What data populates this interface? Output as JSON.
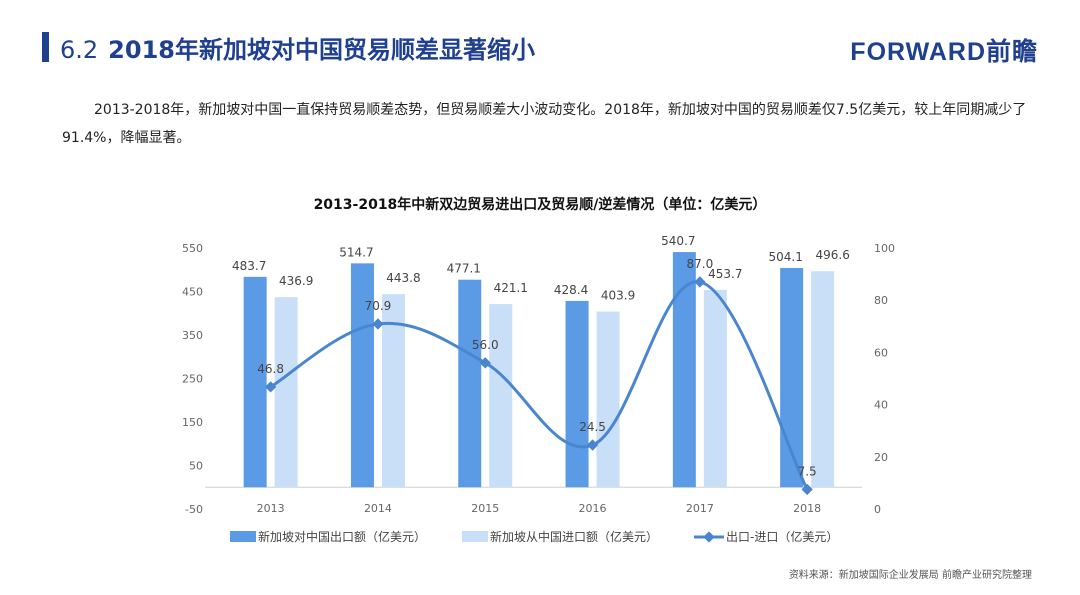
{
  "header": {
    "section_number": "6.2",
    "title": "2018年新加坡对中国贸易顺差显著缩小",
    "logo": "FORWARD前瞻"
  },
  "paragraph": "2013-2018年，新加坡对中国一直保持贸易顺差态势，但贸易顺差大小波动变化。2018年，新加坡对中国的贸易顺差仅7.5亿美元，较上年同期减少了91.4%，降幅显著。",
  "source": "资料来源：新加坡国际企业发展局  前瞻产业研究院整理",
  "colors": {
    "export": "#5b9be6",
    "import": "#c9def7",
    "line": "#4a86d0",
    "title": "#1f3f8f"
  },
  "chart_data": {
    "type": "bar+line",
    "title": "2013-2018年中新双边贸易进出口及贸易顺/逆差情况（单位：亿美元）",
    "categories": [
      "2013",
      "2014",
      "2015",
      "2016",
      "2017",
      "2018"
    ],
    "series": [
      {
        "name": "新加坡对中国出口额（亿美元）",
        "type": "bar",
        "axis": "left",
        "values": [
          483.7,
          514.7,
          477.1,
          428.4,
          540.7,
          504.1
        ]
      },
      {
        "name": "新加坡从中国进口额（亿美元）",
        "type": "bar",
        "axis": "left",
        "values": [
          436.9,
          443.8,
          421.1,
          403.9,
          453.7,
          496.6
        ]
      },
      {
        "name": "出口-进口（亿美元）",
        "type": "line",
        "axis": "right",
        "values": [
          46.8,
          70.9,
          56.0,
          24.5,
          87.0,
          7.5
        ]
      }
    ],
    "left_axis": {
      "range": [
        -50,
        550
      ],
      "ticks": [
        "550",
        "450",
        "350",
        "250",
        "150",
        "50",
        "-50"
      ]
    },
    "right_axis": {
      "range": [
        0,
        100
      ],
      "ticks": [
        "100",
        "80",
        "60",
        "40",
        "20",
        "0"
      ]
    },
    "legend": "bottom",
    "grid": false
  }
}
